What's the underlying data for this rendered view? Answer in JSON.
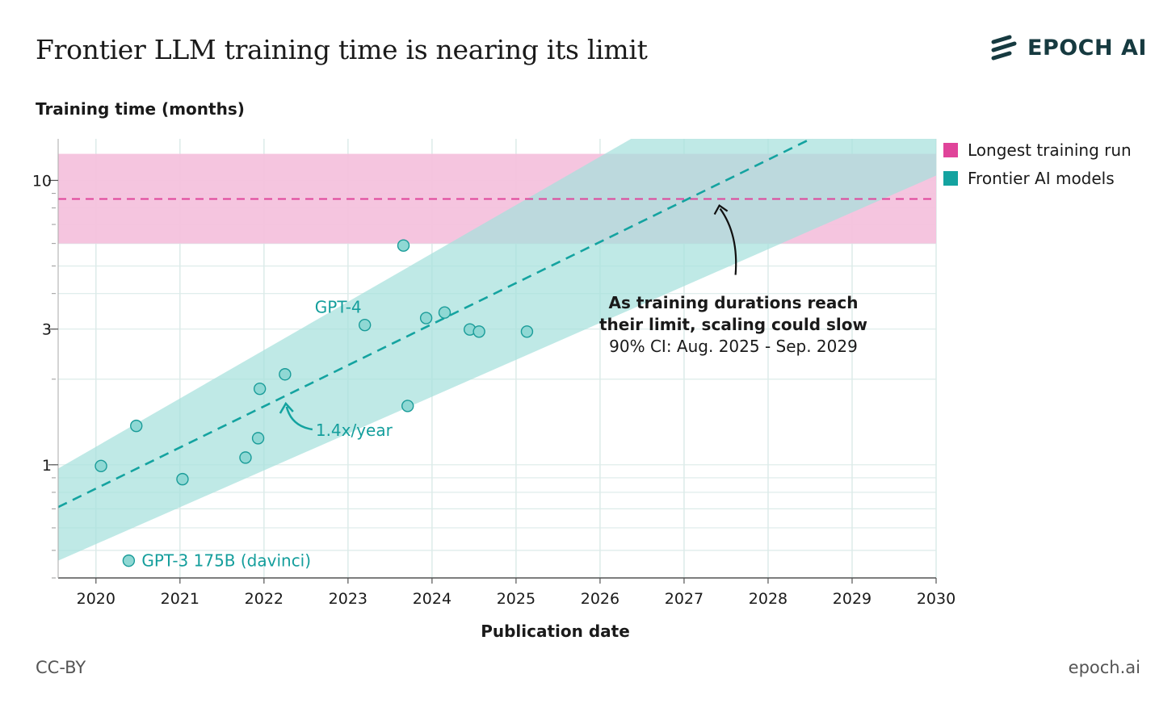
{
  "header": {
    "title": "Frontier LLM training time is nearing its limit",
    "logo_text": "EPOCH AI"
  },
  "footer": {
    "license": "CC-BY",
    "site": "epoch.ai"
  },
  "colors": {
    "pink": "#e0449a",
    "pink_band": "#f4c2dd",
    "teal": "#14a3a0",
    "teal_band": "#a6e1dd",
    "teal_text": "#149e9c",
    "grid": "#dcebe9",
    "axis": "#555555",
    "logo": "#163a40"
  },
  "chart_data": {
    "type": "scatter",
    "title": "Frontier LLM training time is nearing its limit",
    "ylabel": "Training time (months)",
    "xlabel": "Publication date",
    "y_scale": "log",
    "xlim": [
      2019.55,
      2030
    ],
    "ylim": [
      0.4,
      14
    ],
    "x_ticks": [
      2020,
      2021,
      2022,
      2023,
      2024,
      2025,
      2026,
      2027,
      2028,
      2029,
      2030
    ],
    "x_tick_labels": [
      "2020",
      "2021",
      "2022",
      "2023",
      "2024",
      "2025",
      "2026",
      "2027",
      "2028",
      "2029",
      "2030"
    ],
    "y_ticks": [
      1,
      3,
      10
    ],
    "y_tick_labels": [
      "1",
      "3",
      "10"
    ],
    "legend": [
      "Longest training run",
      "Frontier AI models"
    ],
    "longest_run": {
      "name": "Longest training run",
      "value": 8.6,
      "band": [
        6.0,
        12.4
      ]
    },
    "trend": {
      "name": "Frontier AI models",
      "label": "1.4x/year",
      "start": [
        2019.55,
        0.71
      ],
      "end": [
        2030,
        23.0
      ],
      "band_lower": [
        [
          2019.55,
          0.46
        ],
        [
          2030,
          10.4
        ]
      ],
      "band_upper": [
        [
          2019.55,
          0.97
        ],
        [
          2030,
          58.0
        ]
      ]
    },
    "points": [
      {
        "x": 2020.06,
        "y": 0.99
      },
      {
        "x": 2020.48,
        "y": 1.37
      },
      {
        "x": 2020.39,
        "y": 0.46,
        "label": "GPT-3 175B (davinci)"
      },
      {
        "x": 2021.03,
        "y": 0.89
      },
      {
        "x": 2021.78,
        "y": 1.06
      },
      {
        "x": 2021.93,
        "y": 1.24
      },
      {
        "x": 2021.95,
        "y": 1.85
      },
      {
        "x": 2022.25,
        "y": 2.08
      },
      {
        "x": 2023.2,
        "y": 3.1,
        "label": "GPT-4"
      },
      {
        "x": 2023.66,
        "y": 5.9
      },
      {
        "x": 2023.71,
        "y": 1.61
      },
      {
        "x": 2023.93,
        "y": 3.28
      },
      {
        "x": 2024.15,
        "y": 3.43
      },
      {
        "x": 2024.45,
        "y": 2.99
      },
      {
        "x": 2024.56,
        "y": 2.94
      },
      {
        "x": 2025.13,
        "y": 2.94
      }
    ],
    "annotations": {
      "trend_label": "1.4x/year",
      "limit_line1": "As training durations reach",
      "limit_line2": "their limit, scaling could slow",
      "limit_line3": "90% CI: Aug. 2025 - Sep. 2029",
      "crossing": [
        2027.42,
        8.6
      ]
    }
  }
}
